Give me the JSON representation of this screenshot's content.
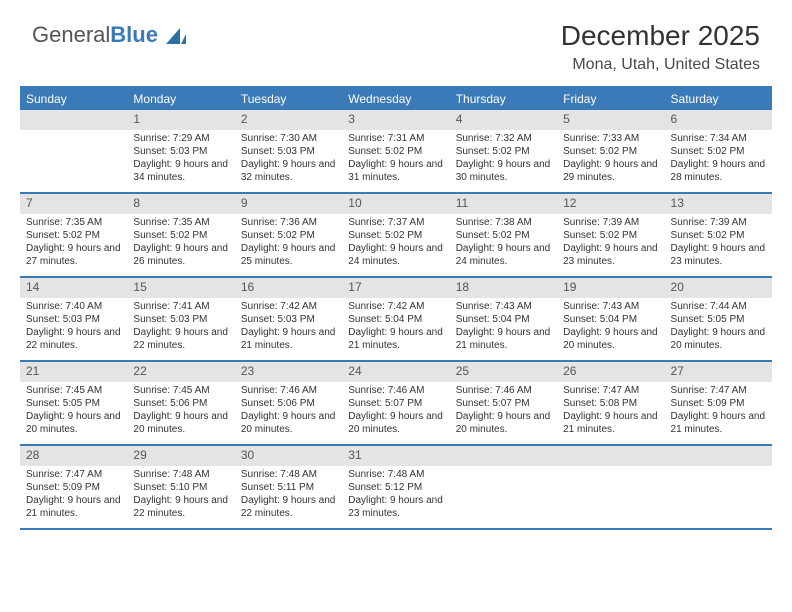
{
  "logo": {
    "part1": "General",
    "part2": "Blue"
  },
  "title": "December 2025",
  "location": "Mona, Utah, United States",
  "colors": {
    "accent": "#3a7ab8",
    "header_text": "#ffffff",
    "daynum_bg": "#e4e4e4",
    "text": "#333333",
    "border": "#3a7ab8"
  },
  "weekday_headers": [
    "Sunday",
    "Monday",
    "Tuesday",
    "Wednesday",
    "Thursday",
    "Friday",
    "Saturday"
  ],
  "weeks": [
    [
      {
        "num": "",
        "lines": []
      },
      {
        "num": "1",
        "lines": [
          "Sunrise: 7:29 AM",
          "Sunset: 5:03 PM",
          "Daylight: 9 hours and 34 minutes."
        ]
      },
      {
        "num": "2",
        "lines": [
          "Sunrise: 7:30 AM",
          "Sunset: 5:03 PM",
          "Daylight: 9 hours and 32 minutes."
        ]
      },
      {
        "num": "3",
        "lines": [
          "Sunrise: 7:31 AM",
          "Sunset: 5:02 PM",
          "Daylight: 9 hours and 31 minutes."
        ]
      },
      {
        "num": "4",
        "lines": [
          "Sunrise: 7:32 AM",
          "Sunset: 5:02 PM",
          "Daylight: 9 hours and 30 minutes."
        ]
      },
      {
        "num": "5",
        "lines": [
          "Sunrise: 7:33 AM",
          "Sunset: 5:02 PM",
          "Daylight: 9 hours and 29 minutes."
        ]
      },
      {
        "num": "6",
        "lines": [
          "Sunrise: 7:34 AM",
          "Sunset: 5:02 PM",
          "Daylight: 9 hours and 28 minutes."
        ]
      }
    ],
    [
      {
        "num": "7",
        "lines": [
          "Sunrise: 7:35 AM",
          "Sunset: 5:02 PM",
          "Daylight: 9 hours and 27 minutes."
        ]
      },
      {
        "num": "8",
        "lines": [
          "Sunrise: 7:35 AM",
          "Sunset: 5:02 PM",
          "Daylight: 9 hours and 26 minutes."
        ]
      },
      {
        "num": "9",
        "lines": [
          "Sunrise: 7:36 AM",
          "Sunset: 5:02 PM",
          "Daylight: 9 hours and 25 minutes."
        ]
      },
      {
        "num": "10",
        "lines": [
          "Sunrise: 7:37 AM",
          "Sunset: 5:02 PM",
          "Daylight: 9 hours and 24 minutes."
        ]
      },
      {
        "num": "11",
        "lines": [
          "Sunrise: 7:38 AM",
          "Sunset: 5:02 PM",
          "Daylight: 9 hours and 24 minutes."
        ]
      },
      {
        "num": "12",
        "lines": [
          "Sunrise: 7:39 AM",
          "Sunset: 5:02 PM",
          "Daylight: 9 hours and 23 minutes."
        ]
      },
      {
        "num": "13",
        "lines": [
          "Sunrise: 7:39 AM",
          "Sunset: 5:02 PM",
          "Daylight: 9 hours and 23 minutes."
        ]
      }
    ],
    [
      {
        "num": "14",
        "lines": [
          "Sunrise: 7:40 AM",
          "Sunset: 5:03 PM",
          "Daylight: 9 hours and 22 minutes."
        ]
      },
      {
        "num": "15",
        "lines": [
          "Sunrise: 7:41 AM",
          "Sunset: 5:03 PM",
          "Daylight: 9 hours and 22 minutes."
        ]
      },
      {
        "num": "16",
        "lines": [
          "Sunrise: 7:42 AM",
          "Sunset: 5:03 PM",
          "Daylight: 9 hours and 21 minutes."
        ]
      },
      {
        "num": "17",
        "lines": [
          "Sunrise: 7:42 AM",
          "Sunset: 5:04 PM",
          "Daylight: 9 hours and 21 minutes."
        ]
      },
      {
        "num": "18",
        "lines": [
          "Sunrise: 7:43 AM",
          "Sunset: 5:04 PM",
          "Daylight: 9 hours and 21 minutes."
        ]
      },
      {
        "num": "19",
        "lines": [
          "Sunrise: 7:43 AM",
          "Sunset: 5:04 PM",
          "Daylight: 9 hours and 20 minutes."
        ]
      },
      {
        "num": "20",
        "lines": [
          "Sunrise: 7:44 AM",
          "Sunset: 5:05 PM",
          "Daylight: 9 hours and 20 minutes."
        ]
      }
    ],
    [
      {
        "num": "21",
        "lines": [
          "Sunrise: 7:45 AM",
          "Sunset: 5:05 PM",
          "Daylight: 9 hours and 20 minutes."
        ]
      },
      {
        "num": "22",
        "lines": [
          "Sunrise: 7:45 AM",
          "Sunset: 5:06 PM",
          "Daylight: 9 hours and 20 minutes."
        ]
      },
      {
        "num": "23",
        "lines": [
          "Sunrise: 7:46 AM",
          "Sunset: 5:06 PM",
          "Daylight: 9 hours and 20 minutes."
        ]
      },
      {
        "num": "24",
        "lines": [
          "Sunrise: 7:46 AM",
          "Sunset: 5:07 PM",
          "Daylight: 9 hours and 20 minutes."
        ]
      },
      {
        "num": "25",
        "lines": [
          "Sunrise: 7:46 AM",
          "Sunset: 5:07 PM",
          "Daylight: 9 hours and 20 minutes."
        ]
      },
      {
        "num": "26",
        "lines": [
          "Sunrise: 7:47 AM",
          "Sunset: 5:08 PM",
          "Daylight: 9 hours and 21 minutes."
        ]
      },
      {
        "num": "27",
        "lines": [
          "Sunrise: 7:47 AM",
          "Sunset: 5:09 PM",
          "Daylight: 9 hours and 21 minutes."
        ]
      }
    ],
    [
      {
        "num": "28",
        "lines": [
          "Sunrise: 7:47 AM",
          "Sunset: 5:09 PM",
          "Daylight: 9 hours and 21 minutes."
        ]
      },
      {
        "num": "29",
        "lines": [
          "Sunrise: 7:48 AM",
          "Sunset: 5:10 PM",
          "Daylight: 9 hours and 22 minutes."
        ]
      },
      {
        "num": "30",
        "lines": [
          "Sunrise: 7:48 AM",
          "Sunset: 5:11 PM",
          "Daylight: 9 hours and 22 minutes."
        ]
      },
      {
        "num": "31",
        "lines": [
          "Sunrise: 7:48 AM",
          "Sunset: 5:12 PM",
          "Daylight: 9 hours and 23 minutes."
        ]
      },
      {
        "num": "",
        "lines": []
      },
      {
        "num": "",
        "lines": []
      },
      {
        "num": "",
        "lines": []
      }
    ]
  ]
}
